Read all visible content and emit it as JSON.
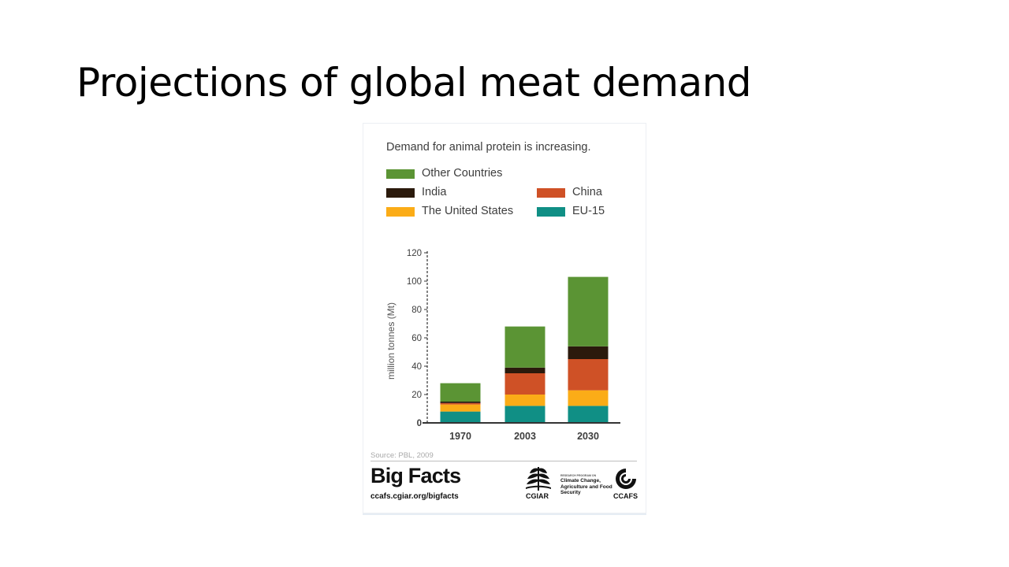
{
  "slide": {
    "title": "Projections of global meat demand"
  },
  "chart_data": {
    "type": "bar",
    "stacked": true,
    "subtitle": "Demand for animal protein is increasing.",
    "ylabel": "million tonnes (Mt)",
    "xlabel": "",
    "ylim": [
      0,
      120
    ],
    "yticks": [
      0,
      20,
      40,
      60,
      80,
      100,
      120
    ],
    "categories": [
      "1970",
      "2003",
      "2030"
    ],
    "series": [
      {
        "name": "EU-15",
        "color": "#108f85",
        "values": [
          8,
          12,
          12
        ]
      },
      {
        "name": "The United States",
        "color": "#fbac17",
        "values": [
          5,
          8,
          11
        ]
      },
      {
        "name": "China",
        "color": "#cf5126",
        "values": [
          1,
          15,
          22
        ]
      },
      {
        "name": "India",
        "color": "#2b1a0c",
        "values": [
          1,
          4,
          9
        ]
      },
      {
        "name": "Other Countries",
        "color": "#5b9434",
        "values": [
          13,
          29,
          49
        ]
      }
    ],
    "legend": [
      {
        "name": "Other Countries",
        "color": "#5b9434"
      },
      {
        "name": "India",
        "color": "#2b1a0c"
      },
      {
        "name": "China",
        "color": "#cf5126"
      },
      {
        "name": "The United States",
        "color": "#fbac17"
      },
      {
        "name": "EU-15",
        "color": "#108f85"
      }
    ],
    "legend_placement": "top",
    "grid": false,
    "source": "Source: PBL, 2009"
  },
  "footer": {
    "brand": "Big Facts",
    "url": "ccafs.cgiar.org/bigfacts",
    "cgiar_label": "CGIAR",
    "program_kicker": "RESEARCH PROGRAM ON",
    "program_name": "Climate Change, Agriculture and Food Security",
    "ccafs_label": "CCAFS"
  }
}
